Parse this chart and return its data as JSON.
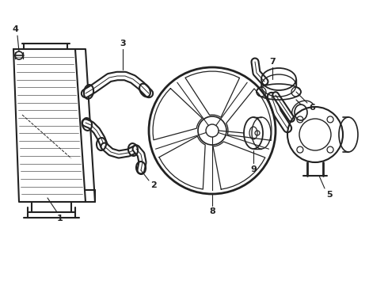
{
  "bg_color": "#ffffff",
  "line_color": "#222222",
  "lw": 1.1,
  "fig_width": 4.9,
  "fig_height": 3.6,
  "dpi": 100,
  "label_fontsize": 7.5,
  "xlim": [
    0,
    490
  ],
  "ylim": [
    0,
    360
  ]
}
